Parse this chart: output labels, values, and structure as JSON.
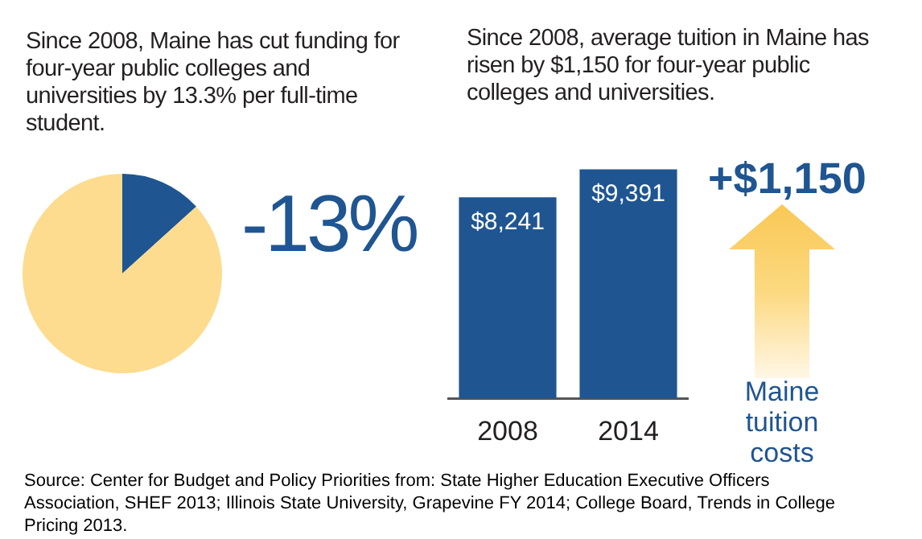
{
  "chart_data": [
    {
      "type": "pie",
      "title": "Since 2008, Maine has cut funding for four-year public colleges and universities by 13.3% per full-time student.",
      "categories": [
        null,
        null
      ],
      "values": [
        13.3,
        86.7
      ],
      "colors": [
        "#1f5591",
        "#fddc8f"
      ],
      "annotations": [
        "-13%"
      ]
    },
    {
      "type": "bar",
      "title": "Since 2008, average tuition in Maine has risen by $1,150 for four-year public colleges and universities.",
      "categories": [
        "2008",
        "2014"
      ],
      "values": [
        8241,
        9391
      ],
      "value_labels": [
        "$8,241",
        "$9,391"
      ],
      "color": "#1f5591",
      "tick_labels": "x",
      "annotations": [
        "+$1,150",
        "Maine tuition costs",
        "Source: Center for Budget and Policy Priorities  from: State Higher Education Executive Officers Association, SHEF 2013; Illinois State University, Grapevine FY 2014; College Board, Trends in College Pricing 2013."
      ]
    }
  ]
}
